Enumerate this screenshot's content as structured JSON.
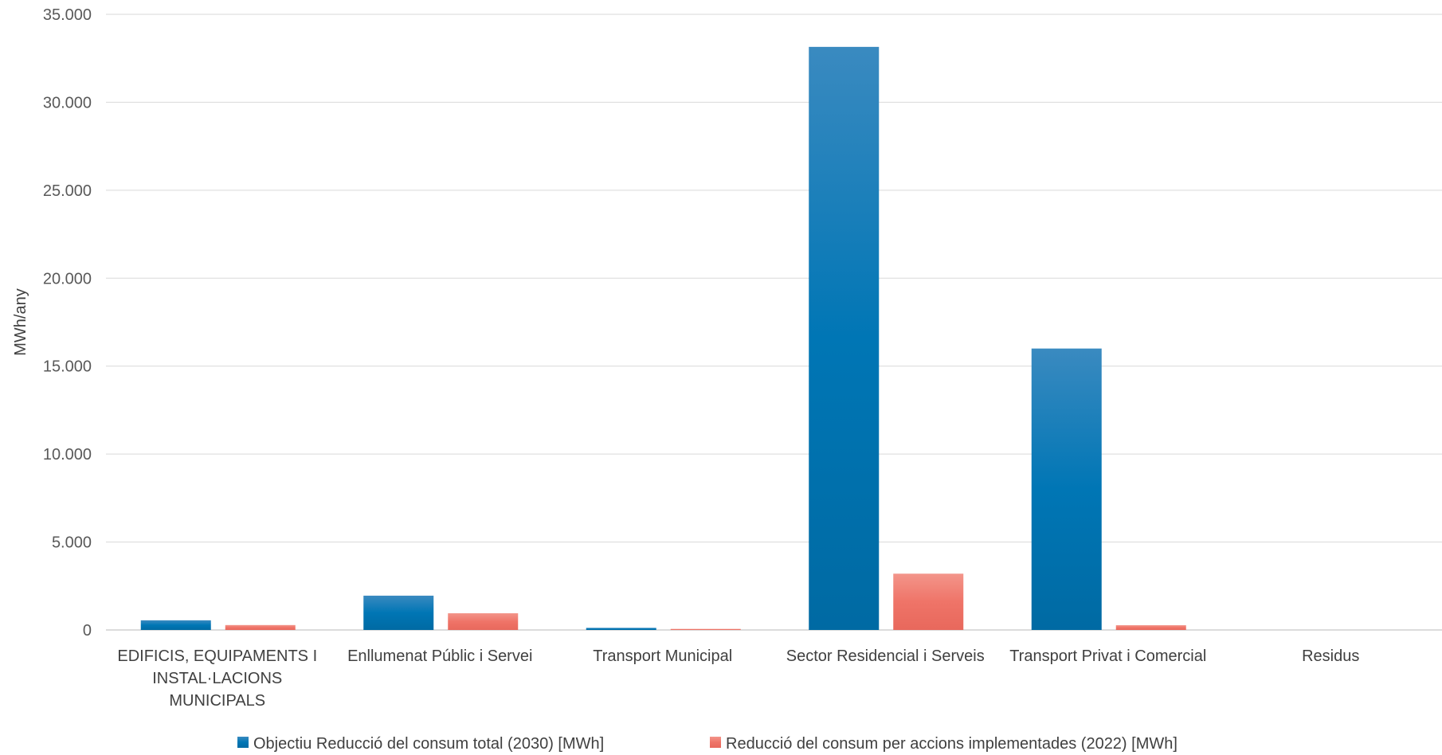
{
  "chart_data": {
    "type": "bar",
    "title": "",
    "xlabel": "",
    "ylabel": "MWh/any",
    "ylim": [
      0,
      35000
    ],
    "y_ticks": [
      "0",
      "5.000",
      "10.000",
      "15.000",
      "20.000",
      "25.000",
      "30.000",
      "35.000"
    ],
    "y_tick_values": [
      0,
      5000,
      10000,
      15000,
      20000,
      25000,
      30000,
      35000
    ],
    "grid": true,
    "legend_position": "bottom",
    "categories": [
      [
        "EDIFICIS, EQUIPAMENTS I",
        "INSTAL·LACIONS",
        "MUNICIPALS"
      ],
      [
        "Enllumenat Públic i Servei"
      ],
      [
        "Transport Municipal"
      ],
      [
        "Sector Residencial i Serveis"
      ],
      [
        "Transport Privat i Comercial"
      ],
      [
        "Residus"
      ]
    ],
    "series": [
      {
        "name": "Objectiu Reducció del consum total (2030) [MWh]",
        "color": "#0070B0",
        "values": [
          550,
          1950,
          120,
          33150,
          16000,
          0
        ]
      },
      {
        "name": "Reducció del consum per accions implementades (2022) [MWh]",
        "color": "#EF7468",
        "values": [
          280,
          950,
          60,
          3200,
          270,
          0
        ]
      }
    ]
  }
}
